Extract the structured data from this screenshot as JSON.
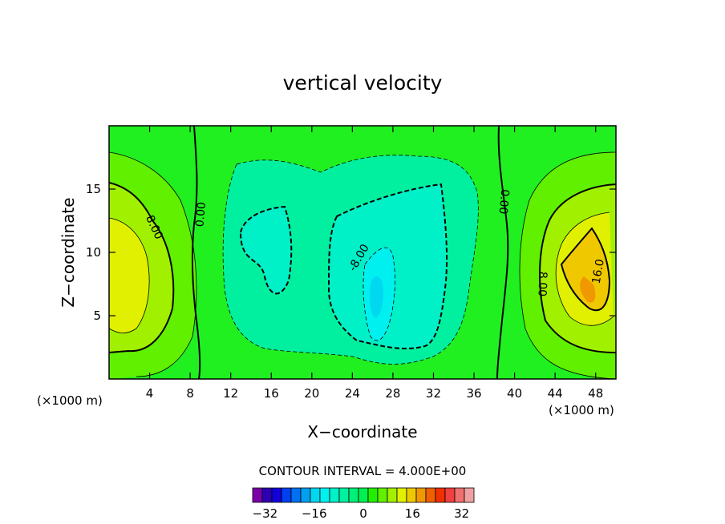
{
  "chart_data": {
    "type": "heatmap",
    "title": "vertical velocity",
    "xlabel": "X−coordinate",
    "ylabel": "Z−coordinate",
    "x_unit_left": "(×1000 m)",
    "x_unit_right": "(×1000 m)",
    "xlim": [
      0,
      50
    ],
    "ylim": [
      0,
      20
    ],
    "x_ticks": [
      4,
      8,
      12,
      16,
      20,
      24,
      28,
      32,
      36,
      40,
      44,
      48
    ],
    "y_ticks": [
      5,
      10,
      15
    ],
    "contour_interval_text": "CONTOUR INTERVAL = 4.000E+00",
    "contour_labels": [
      {
        "text": "8.00",
        "x": 4.5,
        "y": 12
      },
      {
        "text": "0.00",
        "x": 9.0,
        "y": 13
      },
      {
        "text": "-8.00",
        "x": 24.6,
        "y": 9.6
      },
      {
        "text": "0.00",
        "x": 39.0,
        "y": 14
      },
      {
        "text": "8.00",
        "x": 42.8,
        "y": 7.5
      },
      {
        "text": "16.0",
        "x": 48.2,
        "y": 8.5
      }
    ],
    "colorbar": {
      "colors": [
        "#7a00a8",
        "#2c00b4",
        "#1400d8",
        "#0040f0",
        "#0070f0",
        "#00a0f0",
        "#00d8f0",
        "#00f0f0",
        "#00f0c8",
        "#00f0a0",
        "#00f078",
        "#00f050",
        "#20f000",
        "#60f000",
        "#a0f000",
        "#e0f000",
        "#f0c800",
        "#f09800",
        "#f06000",
        "#f03000",
        "#f04040",
        "#f07070",
        "#f0a0a0"
      ],
      "tick_labels": [
        "−32",
        "−16",
        "0",
        "16",
        "32"
      ]
    }
  }
}
